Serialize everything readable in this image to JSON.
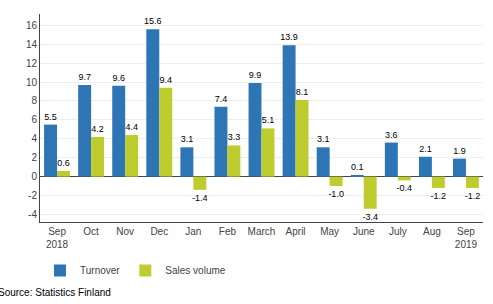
{
  "chart_data": {
    "type": "bar",
    "categories": [
      "Sep\n2018",
      "Oct",
      "Nov",
      "Dec",
      "Jan",
      "Feb",
      "March",
      "April",
      "May",
      "June",
      "July",
      "Aug",
      "Sep\n2019"
    ],
    "series": [
      {
        "name": "Turnover",
        "color": "#2E75B6",
        "values": [
          5.5,
          9.7,
          9.6,
          15.6,
          3.1,
          7.4,
          9.9,
          13.9,
          3.1,
          0.1,
          3.6,
          2.1,
          1.9
        ]
      },
      {
        "name": "Sales volume",
        "color": "#BFCC30",
        "values": [
          0.6,
          4.2,
          4.4,
          9.4,
          -1.4,
          3.3,
          5.1,
          8.1,
          -1.0,
          -3.4,
          -0.4,
          -1.2,
          -1.2
        ],
        "value_labels": [
          "0.6",
          "4.2",
          "4.4",
          "9.4",
          "-1.4",
          "3.3",
          "5.1",
          "8.1",
          "-1.0",
          "-3.4",
          "-0.4",
          "-1.2",
          "-1.2"
        ]
      }
    ],
    "ylim": [
      -4.8,
      17.2
    ],
    "yticks": [
      -4,
      -2,
      0,
      2,
      4,
      6,
      8,
      10,
      12,
      14,
      16
    ],
    "grid": true,
    "legend": "lower left",
    "data_labels": true,
    "annotations": [
      "Source: Statistics Finland"
    ]
  }
}
